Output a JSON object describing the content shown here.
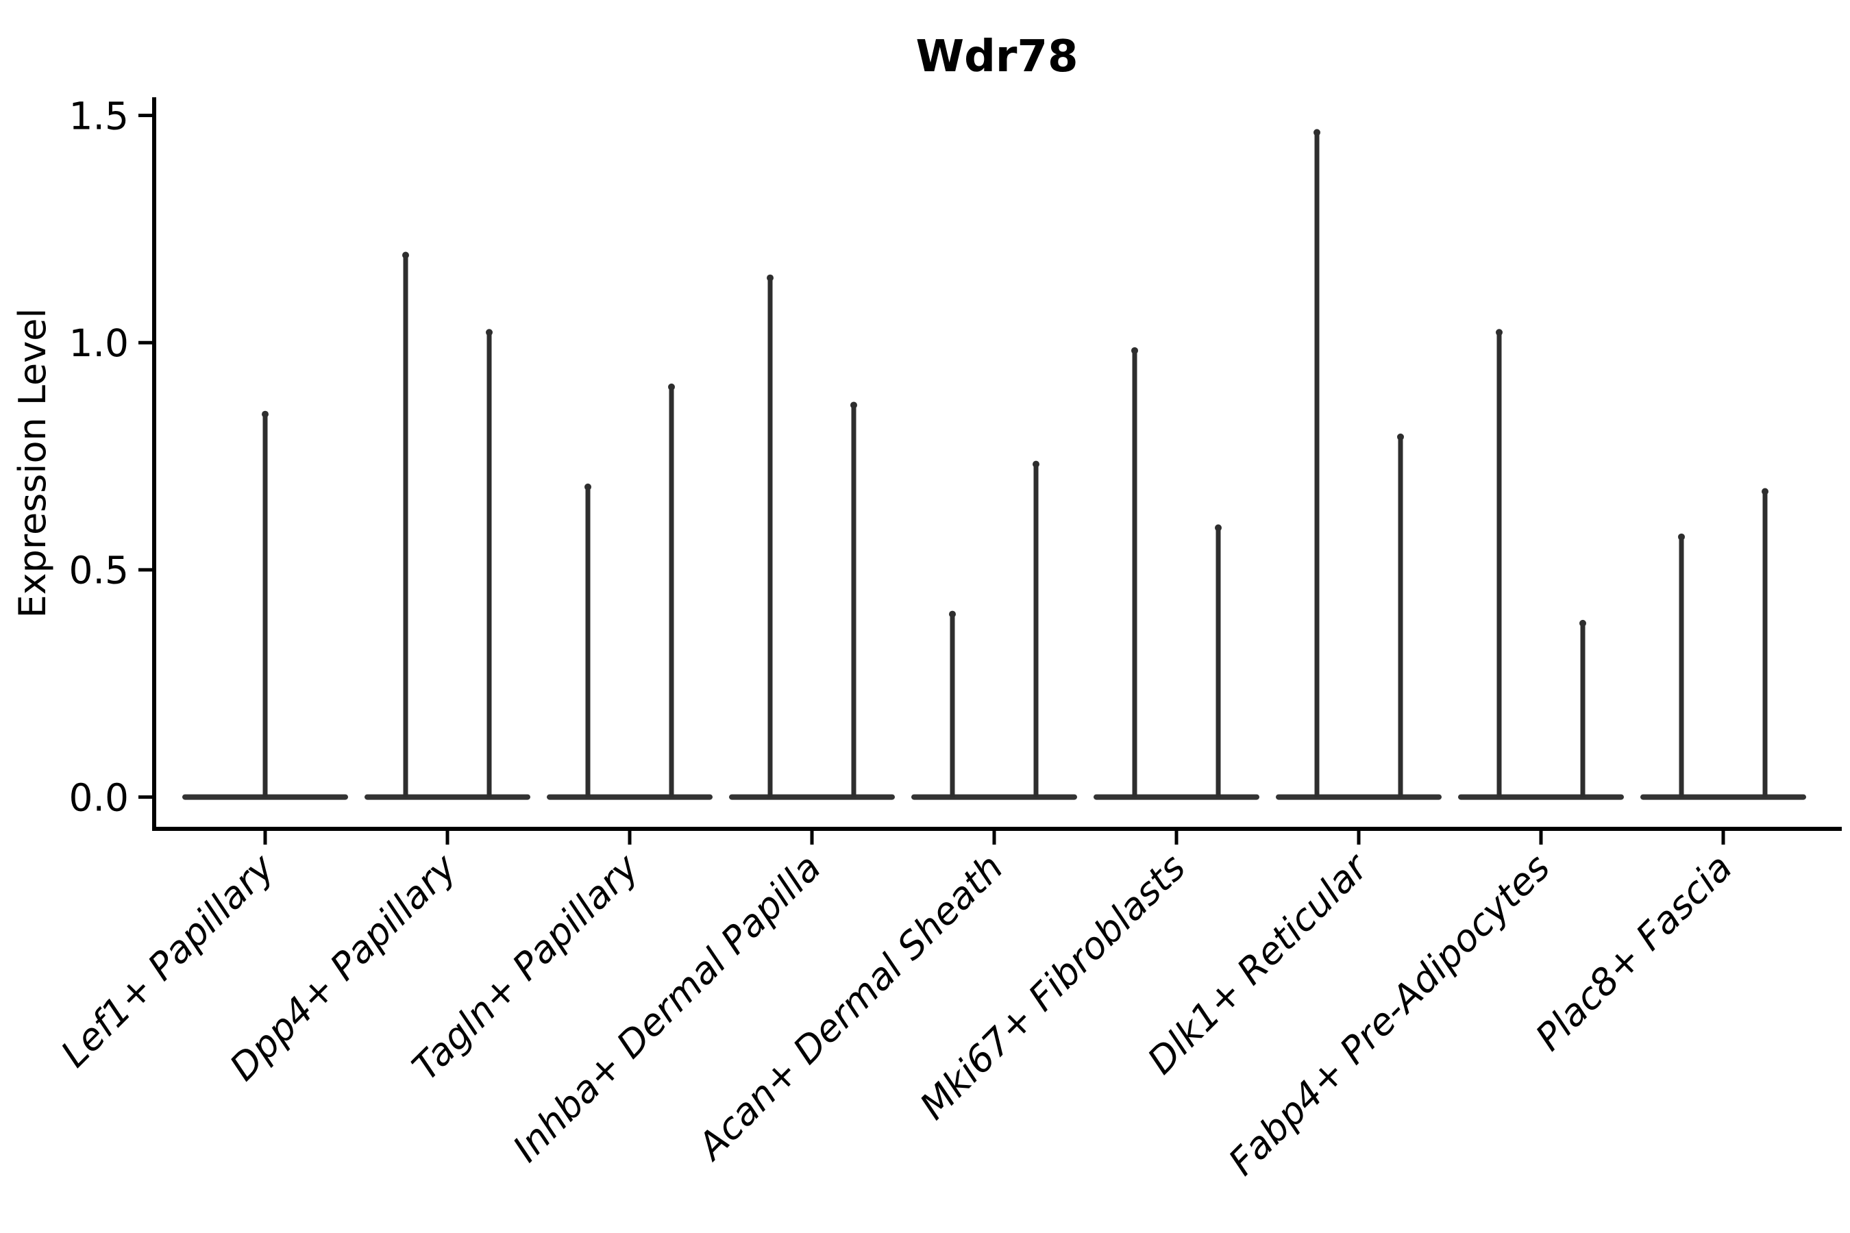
{
  "title": "Wdr78",
  "chart_data": {
    "type": "violin",
    "title": "Wdr78",
    "xlabel": "",
    "ylabel": "Expression Level",
    "categories": [
      "Lef1+ Papillary",
      "Dpp4+ Papillary",
      "Tagln+ Papillary",
      "Inhba+ Dermal Papilla",
      "Acan+ Dermal Sheath",
      "Mki67+ Fibroblasts",
      "Dlk1+ Reticular",
      "Fabp4+ Pre-Adipocytes",
      "Plac8+ Fascia"
    ],
    "violins": [
      {
        "category": "Lef1+ Papillary",
        "spikes": [
          {
            "offset_frac": 0.0,
            "max": 0.85
          }
        ]
      },
      {
        "category": "Dpp4+ Papillary",
        "spikes": [
          {
            "offset_frac": -0.25,
            "max": 1.2
          },
          {
            "offset_frac": 0.25,
            "max": 1.03
          }
        ]
      },
      {
        "category": "Tagln+ Papillary",
        "spikes": [
          {
            "offset_frac": -0.25,
            "max": 0.69
          },
          {
            "offset_frac": 0.25,
            "max": 0.91
          }
        ]
      },
      {
        "category": "Inhba+ Dermal Papilla",
        "spikes": [
          {
            "offset_frac": -0.25,
            "max": 1.15
          },
          {
            "offset_frac": 0.25,
            "max": 0.87
          }
        ]
      },
      {
        "category": "Acan+ Dermal Sheath",
        "spikes": [
          {
            "offset_frac": -0.25,
            "max": 0.41
          },
          {
            "offset_frac": 0.25,
            "max": 0.74
          }
        ]
      },
      {
        "category": "Mki67+ Fibroblasts",
        "spikes": [
          {
            "offset_frac": -0.25,
            "max": 0.99
          },
          {
            "offset_frac": 0.25,
            "max": 0.6
          }
        ]
      },
      {
        "category": "Dlk1+ Reticular",
        "spikes": [
          {
            "offset_frac": -0.25,
            "max": 1.47
          },
          {
            "offset_frac": 0.25,
            "max": 0.8
          }
        ]
      },
      {
        "category": "Fabp4+ Pre-Adipocytes",
        "spikes": [
          {
            "offset_frac": -0.25,
            "max": 1.03
          },
          {
            "offset_frac": 0.25,
            "max": 0.39
          }
        ]
      },
      {
        "category": "Plac8+ Fascia",
        "spikes": [
          {
            "offset_frac": -0.25,
            "max": 0.58
          },
          {
            "offset_frac": 0.25,
            "max": 0.68
          }
        ]
      }
    ],
    "baseline_value": 0.0,
    "yticks": [
      0.0,
      0.5,
      1.0,
      1.5
    ],
    "ytick_labels": [
      "0.0",
      "0.5",
      "1.0",
      "1.5"
    ],
    "ylim": [
      -0.07,
      1.54
    ],
    "grid": false,
    "legend": null,
    "style": {
      "violin_color": "#2e2e2e",
      "baseline_color": "#333333",
      "axis_color": "#000000",
      "text_color": "#000000",
      "background": "#ffffff"
    }
  }
}
